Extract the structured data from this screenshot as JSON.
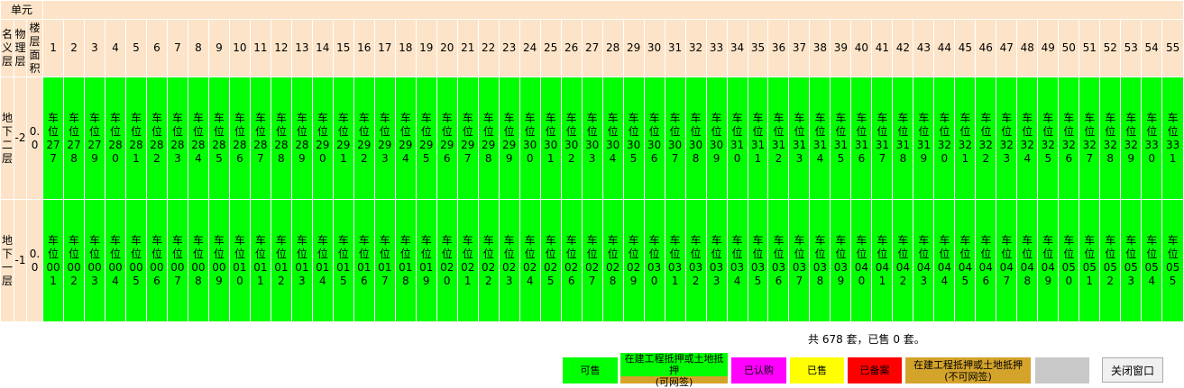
{
  "table": {
    "unit_header": "单元",
    "headers": [
      "名义层",
      "物理层",
      "楼层面积"
    ],
    "columns": [
      1,
      2,
      3,
      4,
      5,
      6,
      7,
      8,
      9,
      10,
      11,
      12,
      13,
      14,
      15,
      16,
      17,
      18,
      19,
      20,
      21,
      22,
      23,
      24,
      25,
      26,
      27,
      28,
      29,
      30,
      31,
      32,
      33,
      34,
      35,
      36,
      37,
      38,
      39,
      40,
      41,
      42,
      43,
      44,
      45,
      46,
      47,
      48,
      49,
      50,
      51,
      52,
      53,
      54,
      55
    ],
    "rows": [
      {
        "name": "地下二层",
        "physical": "-2",
        "area": "0.0",
        "cells": [
          "车位277",
          "车位278",
          "车位279",
          "车位280",
          "车位281",
          "车位282",
          "车位283",
          "车位284",
          "车位285",
          "车位286",
          "车位287",
          "车位288",
          "车位289",
          "车位290",
          "车位291",
          "车位292",
          "车位293",
          "车位294",
          "车位295",
          "车位296",
          "车位297",
          "车位298",
          "车位299",
          "车位300",
          "车位301",
          "车位302",
          "车位303",
          "车位304",
          "车位305",
          "车位306",
          "车位307",
          "车位308",
          "车位309",
          "车位310",
          "车位311",
          "车位312",
          "车位313",
          "车位314",
          "车位315",
          "车位316",
          "车位317",
          "车位318",
          "车位319",
          "车位320",
          "车位321",
          "车位322",
          "车位323",
          "车位324",
          "车位325",
          "车位326",
          "车位327",
          "车位328",
          "车位329",
          "车位330",
          "车位331"
        ]
      },
      {
        "name": "地下一层",
        "physical": "-1",
        "area": "0.0",
        "cells": [
          "车位001",
          "车位002",
          "车位003",
          "车位004",
          "车位005",
          "车位006",
          "车位007",
          "车位008",
          "车位009",
          "车位010",
          "车位011",
          "车位012",
          "车位013",
          "车位014",
          "车位015",
          "车位016",
          "车位017",
          "车位018",
          "车位019",
          "车位020",
          "车位021",
          "车位022",
          "车位023",
          "车位024",
          "车位025",
          "车位026",
          "车位027",
          "车位028",
          "车位029",
          "车位030",
          "车位031",
          "车位032",
          "车位033",
          "车位034",
          "车位035",
          "车位036",
          "车位037",
          "车位038",
          "车位039",
          "车位040",
          "车位041",
          "车位042",
          "车位043",
          "车位044",
          "车位045",
          "车位046",
          "车位047",
          "车位048",
          "车位049",
          "车位050",
          "车位051",
          "车位052",
          "车位053",
          "车位054",
          "车位055"
        ]
      }
    ],
    "cell_color": "#00ff00"
  },
  "summary": "共 678 套，已售 0 套。",
  "legend": [
    {
      "label": "可售",
      "color": "#00ff00"
    },
    {
      "label": "在建工程抵押或土地抵押",
      "note": "(可网签)",
      "color": "#d4a32a",
      "label_color": "#00ff00"
    },
    {
      "label": "已认购",
      "color": "#ff00ff"
    },
    {
      "label": "已售",
      "color": "#ffff00"
    },
    {
      "label": "已备案",
      "color": "#ff0000"
    },
    {
      "label": "在建工程抵押或土地抵押",
      "note": "(不可网签)",
      "color": "#d4a32a"
    },
    {
      "color": "#c8c8c8"
    }
  ],
  "close_button": "关闭窗口"
}
